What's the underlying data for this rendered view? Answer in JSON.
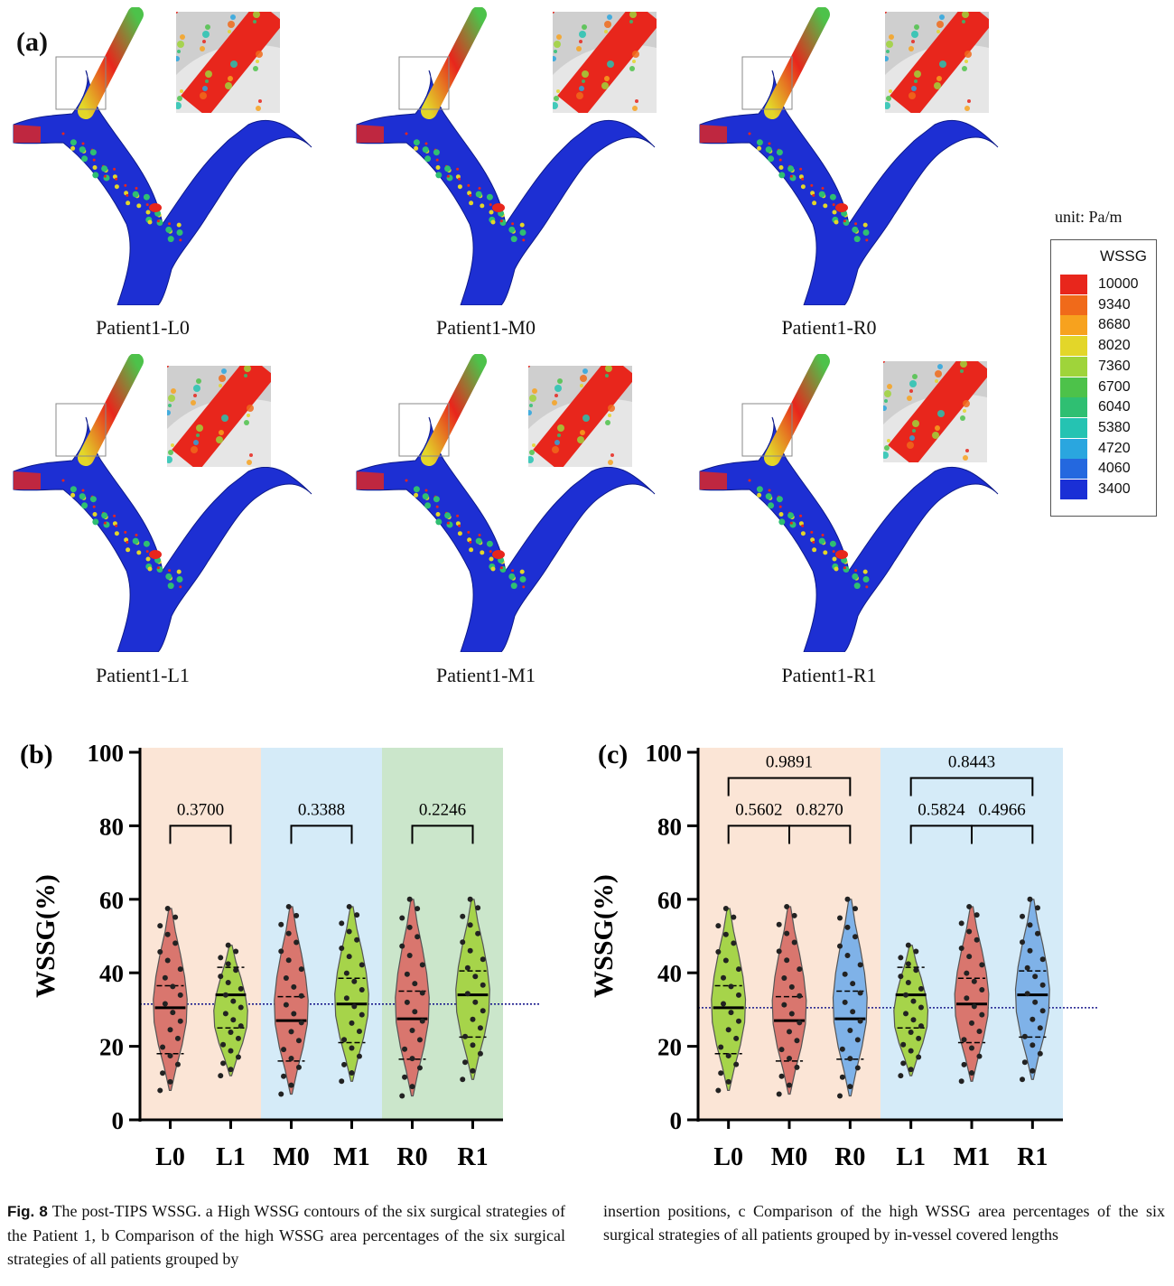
{
  "panel_a": {
    "label": "(a)",
    "cells": [
      {
        "caption": "Patient1-L0"
      },
      {
        "caption": "Patient1-M0"
      },
      {
        "caption": "Patient1-R0"
      },
      {
        "caption": "Patient1-L1"
      },
      {
        "caption": "Patient1-M1"
      },
      {
        "caption": "Patient1-R1"
      }
    ],
    "legend": {
      "unit": "unit: Pa/m",
      "title": "WSSG",
      "values": [
        "10000",
        "9340",
        "8680",
        "8020",
        "7360",
        "6700",
        "6040",
        "5380",
        "4720",
        "4060",
        "3400"
      ],
      "colors": [
        "#e8261c",
        "#f06a1a",
        "#f7a21e",
        "#e3d629",
        "#9fd43a",
        "#4dc24a",
        "#2fbf72",
        "#25c3b2",
        "#2aa6df",
        "#2468df",
        "#1a2fd6"
      ]
    },
    "vessel_color": "#1d2fd3"
  },
  "chart_data": [
    {
      "panel_label": "(b)",
      "type": "violin",
      "ylabel": "WSSG(%)",
      "ylim": [
        0,
        100
      ],
      "yticks": [
        0,
        20,
        40,
        60,
        80,
        100
      ],
      "categories": [
        "L0",
        "L1",
        "M0",
        "M1",
        "R0",
        "R1"
      ],
      "group_backgrounds": [
        {
          "categories": [
            "L0",
            "L1"
          ],
          "color": "#fbe5d6"
        },
        {
          "categories": [
            "M0",
            "M1"
          ],
          "color": "#d5ebf8"
        },
        {
          "categories": [
            "R0",
            "R1"
          ],
          "color": "#cbe6cb"
        }
      ],
      "violin_colors": [
        "#d9766e",
        "#a6d44a",
        "#d9766e",
        "#a6d44a",
        "#d9766e",
        "#a6d44a"
      ],
      "series": [
        {
          "category": "L0",
          "min": 8,
          "max": 57.5,
          "q1": 18,
          "median": 30.5,
          "q3": 36.5
        },
        {
          "category": "L1",
          "min": 12,
          "max": 47.5,
          "q1": 25,
          "median": 34,
          "q3": 41.5
        },
        {
          "category": "M0",
          "min": 7,
          "max": 58,
          "q1": 16,
          "median": 27,
          "q3": 33.5
        },
        {
          "category": "M1",
          "min": 10.5,
          "max": 58,
          "q1": 21,
          "median": 31.5,
          "q3": 38.5
        },
        {
          "category": "R0",
          "min": 6.5,
          "max": 60,
          "q1": 16.5,
          "median": 27.5,
          "q3": 35
        },
        {
          "category": "R1",
          "min": 11,
          "max": 60,
          "q1": 22.5,
          "median": 34,
          "q3": 40.5
        }
      ],
      "reference_line": 31.5,
      "comparisons": [
        {
          "from": "L0",
          "to": "L1",
          "p": "0.3700",
          "level": 80
        },
        {
          "from": "M0",
          "to": "M1",
          "p": "0.3388",
          "level": 80
        },
        {
          "from": "R0",
          "to": "R1",
          "p": "0.2246",
          "level": 80
        }
      ]
    },
    {
      "panel_label": "(c)",
      "type": "violin",
      "ylabel": "WSSG(%)",
      "ylim": [
        0,
        100
      ],
      "yticks": [
        0,
        20,
        40,
        60,
        80,
        100
      ],
      "categories": [
        "L0",
        "M0",
        "R0",
        "L1",
        "M1",
        "R1"
      ],
      "group_backgrounds": [
        {
          "categories": [
            "L0",
            "M0",
            "R0"
          ],
          "color": "#fbe5d6"
        },
        {
          "categories": [
            "L1",
            "M1",
            "R1"
          ],
          "color": "#d5ebf8"
        }
      ],
      "violin_colors": [
        "#a6d44a",
        "#d9766e",
        "#7fb2e8",
        "#a6d44a",
        "#d9766e",
        "#7fb2e8"
      ],
      "series": [
        {
          "category": "L0",
          "min": 8,
          "max": 57.5,
          "q1": 18,
          "median": 30.5,
          "q3": 36.5
        },
        {
          "category": "M0",
          "min": 7,
          "max": 58,
          "q1": 16,
          "median": 27,
          "q3": 33.5
        },
        {
          "category": "R0",
          "min": 6.5,
          "max": 60,
          "q1": 16.5,
          "median": 27.5,
          "q3": 35
        },
        {
          "category": "L1",
          "min": 12,
          "max": 47.5,
          "q1": 25,
          "median": 34,
          "q3": 41.5
        },
        {
          "category": "M1",
          "min": 10.5,
          "max": 58,
          "q1": 21,
          "median": 31.5,
          "q3": 38.5
        },
        {
          "category": "R1",
          "min": 11,
          "max": 60,
          "q1": 22.5,
          "median": 34,
          "q3": 40.5
        }
      ],
      "reference_line": 30.5,
      "comparisons": [
        {
          "from": "L0",
          "to": "M0",
          "p": "0.5602",
          "level": 80
        },
        {
          "from": "M0",
          "to": "R0",
          "p": "0.8270",
          "level": 80
        },
        {
          "from": "L0",
          "to": "R0",
          "p": "0.9891",
          "level": 93
        },
        {
          "from": "L1",
          "to": "M1",
          "p": "0.5824",
          "level": 80
        },
        {
          "from": "M1",
          "to": "R1",
          "p": "0.4966",
          "level": 80
        },
        {
          "from": "L1",
          "to": "R1",
          "p": "0.8443",
          "level": 93
        }
      ]
    }
  ],
  "caption": {
    "fig_label": "Fig. 8",
    "col1": "The post-TIPS WSSG. a High WSSG contours of the six surgical strategies of the Patient 1, b Comparison of the high WSSG area percentages of the six surgical strategies of all patients grouped by",
    "col2": "insertion positions, c Comparison of the high WSSG area percentages of the six surgical strategies of all patients grouped by in-vessel covered lengths"
  }
}
